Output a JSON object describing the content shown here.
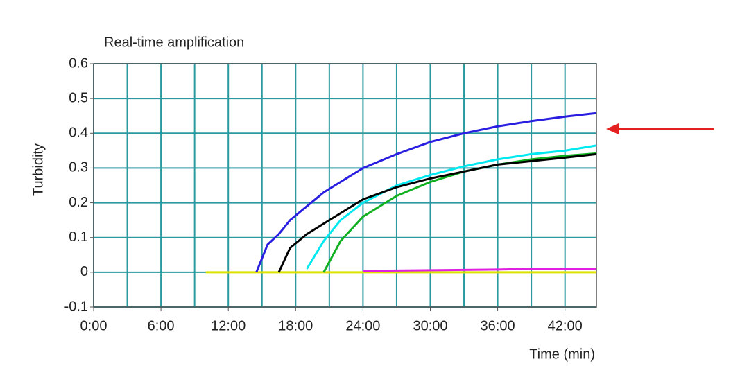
{
  "chart_data": {
    "type": "line",
    "title": "Real-time amplification",
    "y_label": "Turbidity",
    "x_label": "Time (min)",
    "x": [
      10,
      14.5,
      15.5,
      16.5,
      17.5,
      19,
      20.5,
      22,
      24,
      27,
      30,
      33,
      36,
      39,
      42,
      44.8
    ],
    "series": [
      {
        "color": "#e0e000",
        "values": [
          0,
          0,
          0,
          0,
          0,
          0,
          0,
          0,
          0,
          0,
          0,
          0,
          0,
          0,
          0,
          0
        ]
      },
      {
        "color": "#e020e0",
        "values": [
          null,
          null,
          null,
          null,
          null,
          null,
          null,
          null,
          0.004,
          0.005,
          0.006,
          0.007,
          0.008,
          0.01,
          0.01,
          0.01
        ]
      },
      {
        "color": "#00e8f0",
        "values": [
          null,
          null,
          null,
          null,
          null,
          0.01,
          0.09,
          0.15,
          0.2,
          0.25,
          0.28,
          0.305,
          0.325,
          0.34,
          0.35,
          0.365
        ]
      },
      {
        "color": "#10b020",
        "values": [
          null,
          null,
          null,
          null,
          null,
          null,
          0,
          0.09,
          0.16,
          0.22,
          0.26,
          0.29,
          0.31,
          0.325,
          0.335,
          0.342
        ]
      },
      {
        "color": "#000000",
        "values": [
          null,
          null,
          null,
          0,
          0.07,
          0.11,
          0.14,
          0.17,
          0.21,
          0.245,
          0.27,
          0.29,
          0.31,
          0.32,
          0.33,
          0.34
        ]
      },
      {
        "color": "#2a1ee0",
        "values": [
          null,
          0,
          0.08,
          0.11,
          0.15,
          0.19,
          0.23,
          0.26,
          0.3,
          0.34,
          0.375,
          0.4,
          0.42,
          0.435,
          0.448,
          0.458
        ]
      }
    ],
    "xlim": [
      0,
      44.8
    ],
    "xticks": [
      {
        "value": 0,
        "label": "0:00"
      },
      {
        "value": 6,
        "label": "6:00"
      },
      {
        "value": 12,
        "label": "12:00"
      },
      {
        "value": 18,
        "label": "18:00"
      },
      {
        "value": 24,
        "label": "24:00"
      },
      {
        "value": 30,
        "label": "30:00"
      },
      {
        "value": 36,
        "label": "36:00"
      },
      {
        "value": 42,
        "label": "42:00"
      }
    ],
    "xgrid": [
      0,
      3,
      6,
      9,
      12,
      15,
      18,
      21,
      24,
      27,
      30,
      33,
      36,
      39,
      42
    ],
    "ylim": [
      -0.1,
      0.6
    ],
    "yticks": [
      0.6,
      0.5,
      0.4,
      0.3,
      0.2,
      0.1,
      0,
      -0.1
    ],
    "grid": true,
    "grid_color": "#2a9aa0"
  }
}
